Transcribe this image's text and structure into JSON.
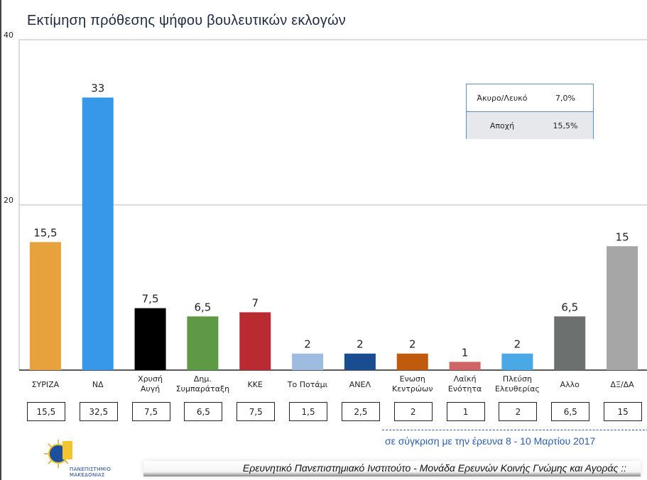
{
  "chart_data": {
    "type": "bar",
    "title": "Εκτίμηση πρόθεσης ψήφου βουλευτικών εκλογών",
    "categories": [
      "ΣΥΡΙΖΑ",
      "ΝΔ",
      "Χρυσή Αυγή",
      "Δημ. Συμπαράταξη",
      "ΚΚΕ",
      "Το Ποτάμι",
      "ΑΝΕΛ",
      "Ενωση Κεντρώων",
      "Λαϊκή Ενότητα",
      "Πλεύση Ελευθερίας",
      "Αλλο",
      "ΔΞ/ΔΑ"
    ],
    "category_lines": [
      [
        "ΣΥΡΙΖΑ"
      ],
      [
        "ΝΔ"
      ],
      [
        "Χρυσή",
        "Αυγή"
      ],
      [
        "Δημ.",
        "Συμπαράταξη"
      ],
      [
        "ΚΚΕ"
      ],
      [
        "Το Ποτάμι"
      ],
      [
        "ΑΝΕΛ"
      ],
      [
        "Ενωση",
        "Κεντρώων"
      ],
      [
        "Λαϊκή",
        "Ενότητα"
      ],
      [
        "Πλεύση",
        "Ελευθερίας"
      ],
      [
        "Αλλο"
      ],
      [
        "ΔΞ/ΔΑ"
      ]
    ],
    "values": [
      15.5,
      33,
      7.5,
      6.5,
      7,
      2,
      2,
      2,
      1,
      2,
      6.5,
      15
    ],
    "data_labels": [
      "15,5",
      "33",
      "7,5",
      "6,5",
      "7",
      "2",
      "2",
      "2",
      "1",
      "2",
      "6,5",
      "15"
    ],
    "colors": [
      "#E8A23D",
      "#3797E8",
      "#000000",
      "#5E9A45",
      "#B92B31",
      "#9DBCE0",
      "#1A4D8F",
      "#C05A0D",
      "#D16464",
      "#4AA8E6",
      "#6C716F",
      "#A6A6A6"
    ],
    "previous_values": [
      "15,5",
      "32,5",
      "7,5",
      "6,5",
      "7,5",
      "1,5",
      "2,5",
      "2",
      "1",
      "2",
      "6,5",
      "15"
    ],
    "ylim": [
      0,
      40
    ],
    "yticks": [
      "20",
      "40"
    ],
    "grid": true,
    "xlabel": "",
    "ylabel": ""
  },
  "inset_table": [
    {
      "label": "Άκυρο/Λευκό",
      "value": "7,0%"
    },
    {
      "label": "Αποχή",
      "value": "15,5%"
    }
  ],
  "comparison_note": "σε σύγκριση με την έρευνα 8 - 10 Μαρτίου 2017",
  "footer": "Ερευνητικό Πανεπιστημιακό Ινστιτούτο - Μονάδα Ερευνών Κοινής Γνώμης και Αγοράς ::",
  "logo_text": "ΠΑΝΕΠΙΣΤΗΜΙΟ ΜΑΚΕΔΟΝΙΑΣ"
}
